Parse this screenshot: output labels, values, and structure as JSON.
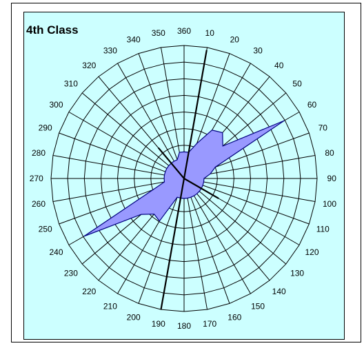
{
  "chart_data": {
    "type": "radar",
    "title": "4th Class",
    "angles": [
      360,
      10,
      20,
      30,
      40,
      50,
      60,
      70,
      80,
      90,
      100,
      110,
      120,
      130,
      140,
      150,
      160,
      170,
      180,
      190,
      200,
      210,
      220,
      230,
      240,
      250,
      260,
      270,
      280,
      290,
      300,
      310,
      320,
      330,
      340,
      350
    ],
    "rings": 8,
    "series": [
      {
        "fill": "#9999ff",
        "stroke": "#000080",
        "points": [
          {
            "angle": 0,
            "r": 0.2
          },
          {
            "angle": 10,
            "r": 0.2
          },
          {
            "angle": 20,
            "r": 0.28
          },
          {
            "angle": 30,
            "r": 0.42
          },
          {
            "angle": 40,
            "r": 0.45
          },
          {
            "angle": 50,
            "r": 0.38
          },
          {
            "angle": 60,
            "r": 0.87
          },
          {
            "angle": 70,
            "r": 0.25
          },
          {
            "angle": 80,
            "r": 0.2
          },
          {
            "angle": 90,
            "r": 0.15
          },
          {
            "angle": 100,
            "r": 0.15
          },
          {
            "angle": 110,
            "r": 0.15
          },
          {
            "angle": 120,
            "r": 0.15
          },
          {
            "angle": 130,
            "r": 0.15
          },
          {
            "angle": 140,
            "r": 0.15
          },
          {
            "angle": 150,
            "r": 0.15
          },
          {
            "angle": 160,
            "r": 0.15
          },
          {
            "angle": 170,
            "r": 0.15
          },
          {
            "angle": 180,
            "r": 0.15
          },
          {
            "angle": 190,
            "r": 0.15
          },
          {
            "angle": 200,
            "r": 0.15
          },
          {
            "angle": 210,
            "r": 0.37
          },
          {
            "angle": 220,
            "r": 0.35
          },
          {
            "angle": 230,
            "r": 0.42
          },
          {
            "angle": 240,
            "r": 0.87
          },
          {
            "angle": 250,
            "r": 0.25
          },
          {
            "angle": 260,
            "r": 0.15
          },
          {
            "angle": 270,
            "r": 0.15
          },
          {
            "angle": 280,
            "r": 0.15
          },
          {
            "angle": 290,
            "r": 0.15
          },
          {
            "angle": 300,
            "r": 0.15
          },
          {
            "angle": 310,
            "r": 0.15
          },
          {
            "angle": 320,
            "r": 0.15
          },
          {
            "angle": 330,
            "r": 0.15
          },
          {
            "angle": 340,
            "r": 0.15
          },
          {
            "angle": 350,
            "r": 0.2
          }
        ]
      }
    ],
    "spikes": [
      {
        "angle": 10,
        "r": 0.98
      },
      {
        "angle": 190,
        "r": 1.0
      },
      {
        "angle": 320,
        "r": 0.3
      },
      {
        "angle": 120,
        "r": 0.3
      }
    ],
    "colors": {
      "background": "#ccffff",
      "grid": "#000000",
      "fill": "#9999ff"
    }
  }
}
